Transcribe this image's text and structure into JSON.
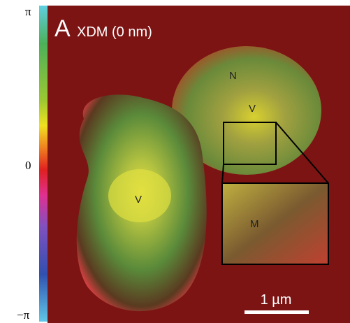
{
  "colorbar": {
    "ticks": [
      "π",
      "0",
      "−π"
    ]
  },
  "panel": {
    "label": "A",
    "title": "XDM (0 nm)"
  },
  "annotations": [
    "N",
    "V",
    "V",
    "M"
  ],
  "scale_bar": "1 µm"
}
